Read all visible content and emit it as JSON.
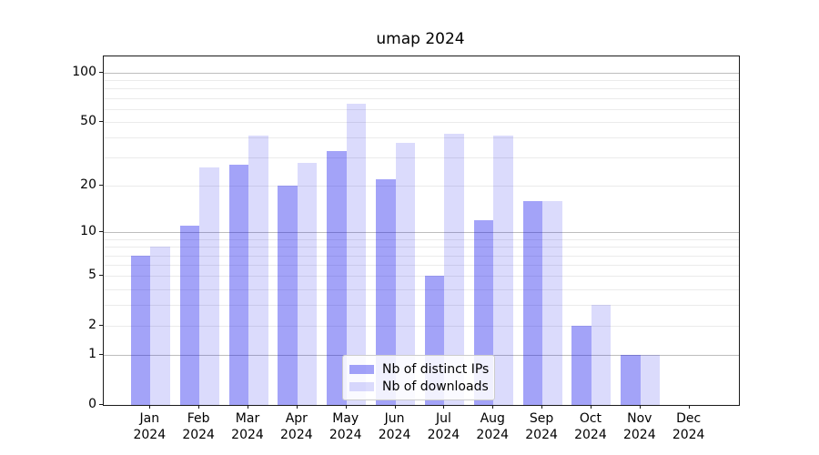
{
  "figure": {
    "title": "umap 2024"
  },
  "chart_data": {
    "type": "bar",
    "title": "umap 2024",
    "categories": [
      "Jan 2024",
      "Feb 2024",
      "Mar 2024",
      "Apr 2024",
      "May 2024",
      "Jun 2024",
      "Jul 2024",
      "Aug 2024",
      "Sep 2024",
      "Oct 2024",
      "Nov 2024",
      "Dec 2024"
    ],
    "series": [
      {
        "name": "Nb of distinct IPs",
        "color": "#0000eb",
        "alpha": 0.36,
        "solid_hex": "#a4a4f4",
        "values": [
          7,
          11,
          27,
          20,
          33,
          22,
          5,
          12,
          16,
          2,
          1,
          0
        ]
      },
      {
        "name": "Nb of downloads",
        "color": "#0000eb",
        "alpha": 0.14,
        "solid_hex": "#dcdcfb",
        "values": [
          8,
          26,
          41,
          28,
          65,
          37,
          42,
          41,
          16,
          3,
          1,
          0
        ]
      }
    ],
    "xlabel": "",
    "ylabel": "",
    "yscale": "log1p",
    "ylim": [
      0,
      127
    ],
    "yticks": [
      0,
      1,
      2,
      5,
      10,
      20,
      50,
      100
    ],
    "ytick_labels": [
      "0",
      "1",
      "2",
      "5",
      "10",
      "20",
      "50",
      "100"
    ],
    "major_gridlines": [
      1,
      10,
      100
    ],
    "minor_gridlines": [
      2,
      3,
      4,
      5,
      6,
      7,
      8,
      9,
      20,
      30,
      40,
      50,
      60,
      70,
      80,
      90
    ],
    "grid": "both",
    "legend": {
      "location": "inside lower center",
      "entries": [
        "Nb of distinct IPs",
        "Nb of downloads"
      ]
    }
  }
}
